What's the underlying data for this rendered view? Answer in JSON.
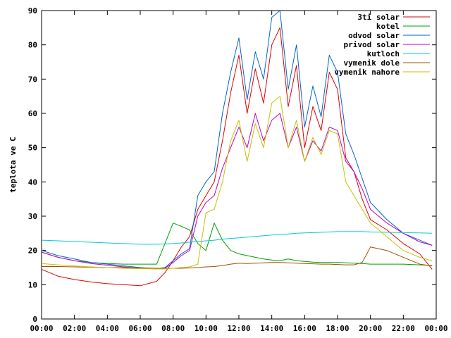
{
  "chart_data": {
    "type": "line",
    "title": "",
    "xlabel": "",
    "ylabel": "teplota ve C",
    "xlim": [
      "00:00",
      "24:00"
    ],
    "ylim": [
      0,
      90
    ],
    "grid": false,
    "legend_position": "top-right",
    "x_ticks": [
      "00:00",
      "02:00",
      "04:00",
      "06:00",
      "08:00",
      "10:00",
      "12:00",
      "14:00",
      "16:00",
      "18:00",
      "20:00",
      "22:00",
      "00:00"
    ],
    "y_ticks": [
      "0",
      "10",
      "20",
      "30",
      "40",
      "50",
      "60",
      "70",
      "80",
      "90"
    ],
    "x": [
      "00:00",
      "01:00",
      "02:00",
      "03:00",
      "04:00",
      "05:00",
      "06:00",
      "07:00",
      "07:30",
      "08:00",
      "08:30",
      "09:00",
      "09:30",
      "10:00",
      "10:30",
      "11:00",
      "11:30",
      "12:00",
      "12:30",
      "13:00",
      "13:30",
      "14:00",
      "14:30",
      "15:00",
      "15:30",
      "16:00",
      "16:30",
      "17:00",
      "17:30",
      "18:00",
      "18:30",
      "19:00",
      "19:30",
      "20:00",
      "21:00",
      "22:00",
      "23:00",
      "23:45"
    ],
    "series": [
      {
        "name": "3ti solar",
        "color": "#e00000",
        "values": [
          14.5,
          12.5,
          11.5,
          10.8,
          10.3,
          10.0,
          9.7,
          11.0,
          13.5,
          17,
          21,
          24,
          32,
          36,
          40,
          52,
          66,
          77,
          60,
          73,
          63,
          80,
          85,
          62,
          74,
          50,
          62,
          55,
          72,
          67,
          47,
          43,
          35,
          29,
          26,
          22,
          19,
          14.5
        ]
      },
      {
        "name": "kotel",
        "color": "#00a000",
        "values": [
          19.5,
          18.0,
          17.0,
          16.5,
          16.2,
          16.0,
          16.0,
          16.0,
          22,
          28,
          27,
          26,
          22,
          20,
          28,
          23,
          20,
          19,
          18.5,
          18.0,
          17.5,
          17.2,
          17.0,
          17.5,
          17.0,
          16.8,
          16.6,
          16.5,
          16.5,
          16.5,
          16.4,
          16.3,
          16.2,
          16.0,
          16.0,
          16.0,
          15.8,
          15.6
        ]
      },
      {
        "name": "odvod solar",
        "color": "#0066cc",
        "values": [
          20,
          18.5,
          17.5,
          16.5,
          16.0,
          15.5,
          15.0,
          14.7,
          15.0,
          17,
          19,
          20.5,
          36,
          40,
          43,
          60,
          72,
          82,
          64,
          78,
          70,
          88,
          90,
          67,
          80,
          56,
          68,
          59,
          77,
          72,
          54,
          48,
          41,
          34,
          29,
          25,
          23,
          21.5
        ]
      },
      {
        "name": "privod solar",
        "color": "#c000c0",
        "values": [
          19.5,
          18,
          17,
          16.2,
          15.7,
          15.2,
          14.8,
          14.6,
          14.8,
          16.5,
          18.5,
          20,
          30,
          34,
          36,
          44,
          50,
          56,
          50,
          60,
          52,
          58,
          60,
          50,
          56,
          46,
          52,
          49,
          56,
          55,
          46,
          43,
          38,
          32,
          28,
          25,
          22.5,
          21.5
        ]
      },
      {
        "name": "kutloch",
        "color": "#00cccc",
        "values": [
          23,
          22.8,
          22.6,
          22.4,
          22.2,
          22.0,
          21.8,
          21.8,
          21.9,
          22.0,
          22.2,
          22.4,
          22.6,
          22.8,
          23.0,
          23.3,
          23.5,
          23.7,
          23.9,
          24.1,
          24.3,
          24.5,
          24.7,
          24.8,
          25.0,
          25.1,
          25.2,
          25.3,
          25.4,
          25.5,
          25.5,
          25.5,
          25.5,
          25.4,
          25.3,
          25.2,
          25.1,
          25.0
        ]
      },
      {
        "name": "vymenik dole",
        "color": "#a05000",
        "values": [
          15.3,
          15.3,
          15.2,
          15.1,
          15.0,
          15.0,
          14.9,
          14.8,
          14.8,
          14.8,
          14.8,
          14.9,
          15.0,
          15.2,
          15.3,
          15.6,
          16.0,
          16.3,
          16.2,
          16.3,
          16.4,
          16.5,
          16.5,
          16.4,
          16.3,
          16.2,
          16.1,
          16.0,
          16.0,
          15.9,
          15.8,
          15.8,
          16.5,
          21,
          20,
          18,
          16,
          15.5
        ]
      },
      {
        "name": "vymenik nahore",
        "color": "#c8c000",
        "values": [
          16.2,
          15.8,
          15.5,
          15.2,
          15.0,
          14.8,
          14.7,
          14.6,
          14.6,
          14.8,
          15.0,
          15.2,
          16,
          31,
          32,
          40,
          52,
          58,
          46,
          57,
          50,
          63,
          65,
          50,
          58,
          46,
          53,
          48,
          55,
          54,
          40,
          36,
          32,
          28,
          24,
          20,
          18,
          17
        ]
      }
    ]
  }
}
